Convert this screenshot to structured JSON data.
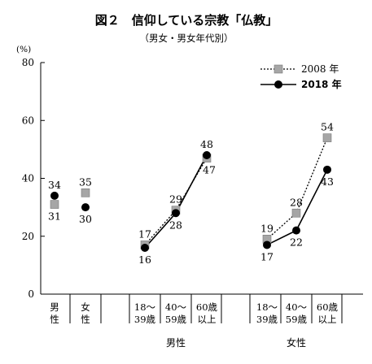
{
  "title": "図２　信仰している宗教「仏教」",
  "subtitle": "（男女・男女年代別）",
  "y_unit": "(%)",
  "y_ticks": [
    "0",
    "20",
    "40",
    "60",
    "80"
  ],
  "legend": [
    {
      "label": "2008 年",
      "marker": "square",
      "line": "dotted",
      "bold": false
    },
    {
      "label": "2018 年",
      "marker": "circle",
      "line": "solid",
      "bold": true
    }
  ],
  "chart_data": {
    "type": "line",
    "title": "図２　信仰している宗教「仏教」",
    "subtitle": "（男女・男女年代別）",
    "ylabel": "(%)",
    "ylim": [
      0,
      80
    ],
    "yticks": [
      0,
      20,
      40,
      60,
      80
    ],
    "grid": false,
    "legend_position": "top-right",
    "categories": [
      {
        "id": "male",
        "lines": [
          "男",
          "性"
        ],
        "group": ""
      },
      {
        "id": "female",
        "lines": [
          "女",
          "性"
        ],
        "group": ""
      },
      {
        "id": "m1839",
        "lines": [
          "18～",
          "39歳"
        ],
        "group": "男性"
      },
      {
        "id": "m4059",
        "lines": [
          "40～",
          "59歳"
        ],
        "group": "男性"
      },
      {
        "id": "m60",
        "lines": [
          "60歳",
          "以上"
        ],
        "group": "男性"
      },
      {
        "id": "f1839",
        "lines": [
          "18～",
          "39歳"
        ],
        "group": "女性"
      },
      {
        "id": "f4059",
        "lines": [
          "40～",
          "59歳"
        ],
        "group": "女性"
      },
      {
        "id": "f60",
        "lines": [
          "60歳",
          "以上"
        ],
        "group": "女性"
      }
    ],
    "groups": [
      "男性",
      "女性"
    ],
    "series": [
      {
        "name": "2008 年",
        "marker": "square",
        "color": "#a6a6a6",
        "line_style": "dotted",
        "values": [
          31,
          35,
          17,
          29,
          47,
          19,
          28,
          54
        ],
        "labels": [
          "31",
          "35",
          "17",
          "29",
          "47",
          "19",
          "28",
          "54"
        ]
      },
      {
        "name": "2018 年",
        "marker": "circle",
        "color": "#000000",
        "line_style": "solid",
        "values": [
          34,
          30,
          16,
          28,
          48,
          17,
          22,
          43
        ],
        "labels": [
          "34",
          "30",
          "16",
          "28",
          "48",
          "17",
          "22",
          "43"
        ]
      }
    ]
  }
}
